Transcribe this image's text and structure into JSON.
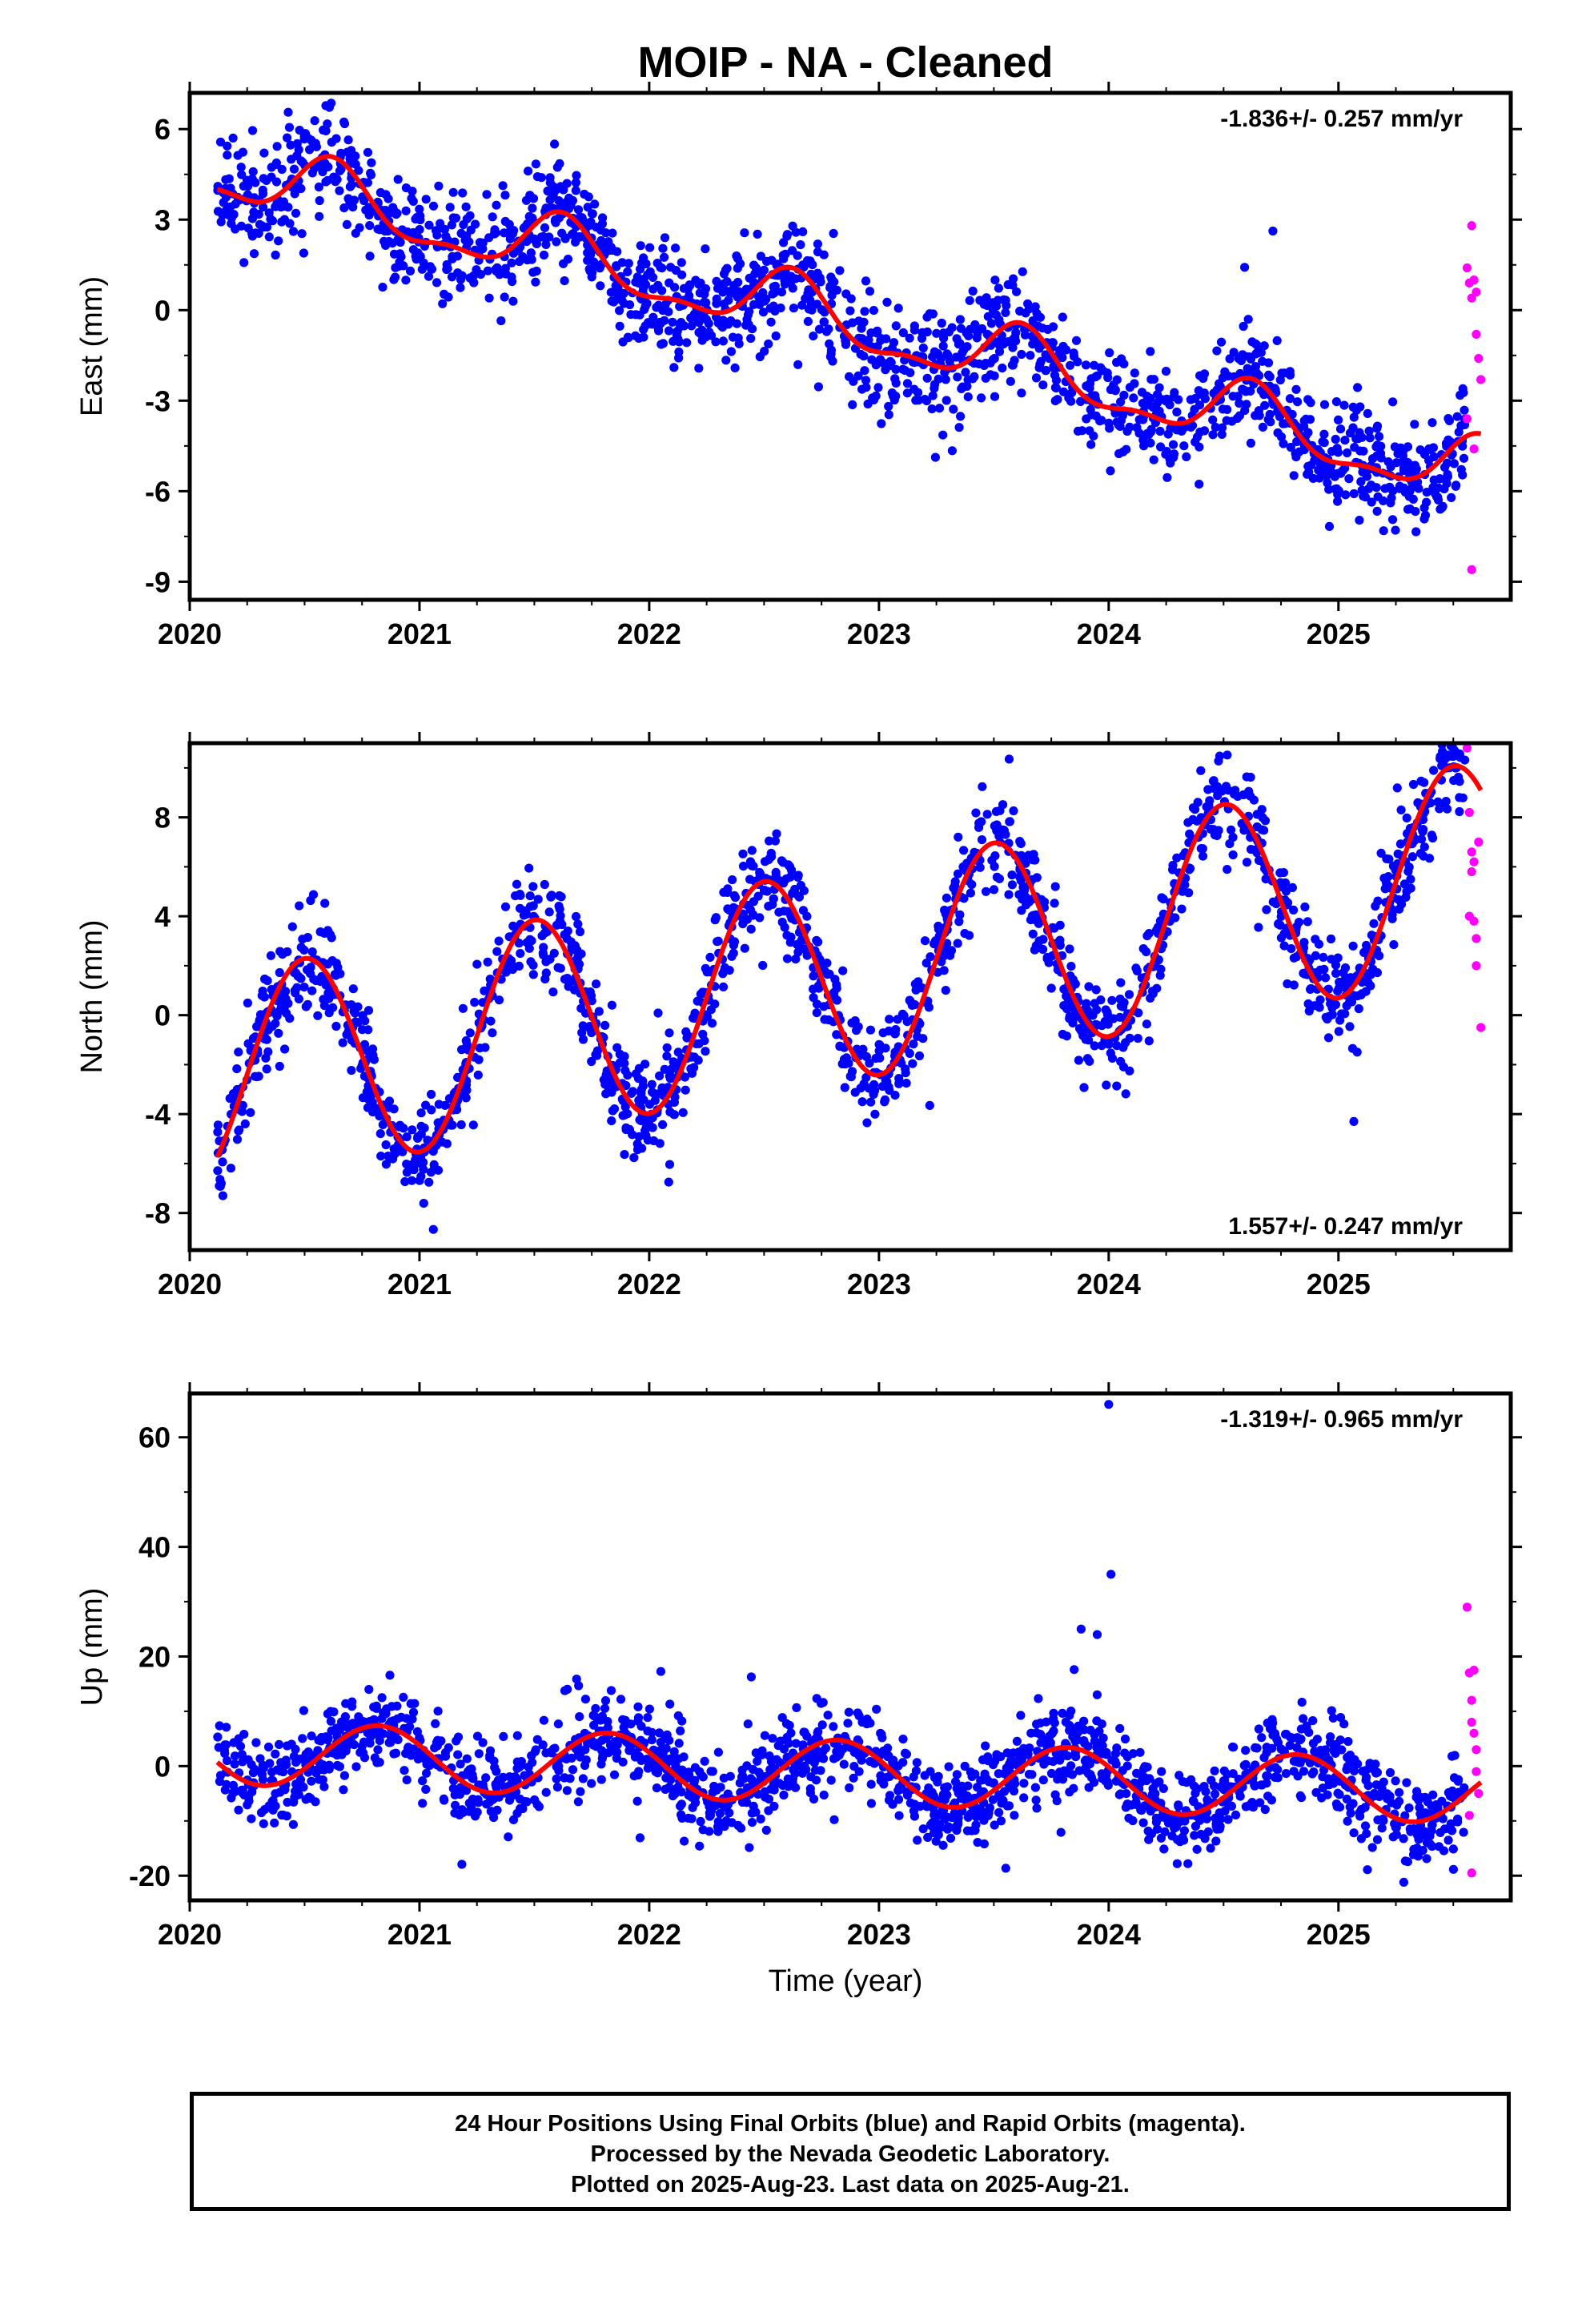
{
  "title": "MOIP  - NA - Cleaned",
  "xlabel": "Time (year)",
  "colors": {
    "final_orbits": "#0000ff",
    "rapid_orbits": "#ff00ff",
    "model": "#ff0000"
  },
  "footer": {
    "line1": "24 Hour Positions Using Final Orbits (blue) and Rapid Orbits (magenta).",
    "line2": "Processed by the Nevada Geodetic Laboratory.",
    "line3": "Plotted on 2025-Aug-23. Last data on 2025-Aug-21."
  },
  "chart_data": [
    {
      "type": "scatter",
      "ylabel": "East (mm)",
      "rate_label": "-1.836+/- 0.257 mm/yr",
      "rate_position": "top-right",
      "xlim": [
        2020.0,
        2025.75
      ],
      "ylim": [
        -9.6,
        7.2
      ],
      "xticks": [
        "2020",
        "2021",
        "2022",
        "2023",
        "2024",
        "2025"
      ],
      "yticks": [
        "6",
        "3",
        "0",
        "-3",
        "-6",
        "-9"
      ],
      "model": {
        "trend_start": 2020.12,
        "start_value": 4.6,
        "rate_mm_yr": -1.836,
        "annual_amp": 1.0,
        "annual_phase_yr": 0.62,
        "semiannual_amp": 0.4
      },
      "final_orbit_points": {
        "x_range": [
          2020.12,
          2025.55
        ],
        "scatter_mm": 0.9
      },
      "rapid_orbit_points": {
        "x": [
          2025.56,
          2025.57,
          2025.58,
          2025.58,
          2025.59,
          2025.6,
          2025.6,
          2025.61,
          2025.62,
          2025.56,
          2025.59,
          2025.58
        ],
        "y": [
          1.4,
          0.9,
          2.8,
          0.4,
          1.0,
          -0.8,
          0.6,
          -1.6,
          -2.3,
          -3.6,
          -4.6,
          -8.6
        ]
      }
    },
    {
      "type": "scatter",
      "ylabel": "North (mm)",
      "rate_label": "1.557+/- 0.247 mm/yr",
      "rate_position": "bottom-right",
      "xlim": [
        2020.0,
        2025.75
      ],
      "ylim": [
        -9.5,
        11.0
      ],
      "xticks": [
        "2020",
        "2021",
        "2022",
        "2023",
        "2024",
        "2025"
      ],
      "yticks": [
        "8",
        "4",
        "0",
        "-4",
        "-8"
      ],
      "model": {
        "trend_start": 2020.12,
        "start_value": -2.6,
        "rate_mm_yr": 1.557,
        "annual_amp": 4.3,
        "annual_phase_yr": 0.5,
        "semiannual_amp": 0.0
      },
      "final_orbit_points": {
        "x_range": [
          2020.12,
          2025.55
        ],
        "scatter_mm": 1.0
      },
      "rapid_orbit_points": {
        "x": [
          2025.56,
          2025.57,
          2025.58,
          2025.58,
          2025.59,
          2025.6,
          2025.6,
          2025.61,
          2025.62,
          2025.57,
          2025.59
        ],
        "y": [
          10.8,
          8.2,
          6.6,
          5.8,
          3.8,
          3.1,
          2.0,
          7.0,
          -0.5,
          4.0,
          6.2
        ]
      }
    },
    {
      "type": "scatter",
      "ylabel": "Up (mm)",
      "rate_label": "-1.319+/- 0.965 mm/yr",
      "rate_position": "top-right",
      "xlim": [
        2020.0,
        2025.75
      ],
      "ylim": [
        -24.5,
        68.0
      ],
      "xticks": [
        "2020",
        "2021",
        "2022",
        "2023",
        "2024",
        "2025"
      ],
      "yticks": [
        "60",
        "40",
        "20",
        "0",
        "-20"
      ],
      "model": {
        "trend_start": 2020.12,
        "start_value": 2.5,
        "rate_mm_yr": -1.319,
        "annual_amp": 5.8,
        "annual_phase_yr": 0.82,
        "semiannual_amp": 0.0
      },
      "final_orbit_points": {
        "x_range": [
          2020.12,
          2025.55
        ],
        "scatter_mm": 4.0,
        "outliers": {
          "x": [
            2024.0,
            2024.01,
            2023.88,
            2023.95
          ],
          "y": [
            66.0,
            35.0,
            25.0,
            24.0
          ]
        }
      },
      "rapid_orbit_points": {
        "x": [
          2025.56,
          2025.57,
          2025.58,
          2025.58,
          2025.59,
          2025.6,
          2025.6,
          2025.61,
          2025.57,
          2025.59,
          2025.58
        ],
        "y": [
          29.0,
          17.0,
          12.0,
          8.0,
          6.0,
          3.0,
          -1.0,
          -5.0,
          -9.0,
          17.5,
          -19.5
        ]
      }
    }
  ]
}
